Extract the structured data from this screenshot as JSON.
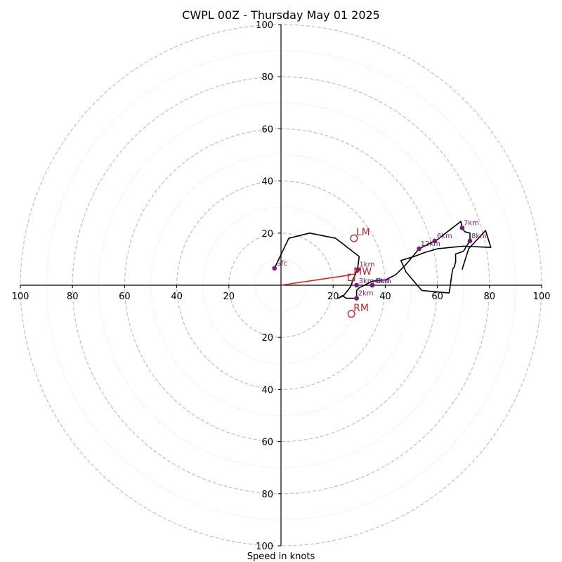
{
  "chart_data": {
    "type": "polar-hodograph",
    "title": "CWPL 00Z - Thursday May 01 2025",
    "xlabel": "Speed in knots",
    "rings_major": [
      20,
      40,
      60,
      80,
      100
    ],
    "rings_minor": [
      10,
      30,
      50,
      70,
      90
    ],
    "max_speed": 100,
    "ticks": {
      "x_negative": [
        "100",
        "80",
        "60",
        "40",
        "20"
      ],
      "x_positive": [
        "20",
        "40",
        "60",
        "80",
        "100"
      ],
      "y_upper": [
        "100",
        "80",
        "60",
        "40",
        "20"
      ],
      "y_lower": [
        "20",
        "40",
        "60",
        "80",
        "100"
      ]
    },
    "hodograph_trace": [
      [
        -2.5,
        6.5
      ],
      [
        3,
        18
      ],
      [
        11,
        20
      ],
      [
        21,
        18
      ],
      [
        30,
        11
      ],
      [
        29.5,
        7
      ],
      [
        28.5,
        4
      ],
      [
        27.5,
        2
      ],
      [
        27,
        0
      ],
      [
        26,
        -1.5
      ],
      [
        24,
        -4
      ],
      [
        22,
        -5
      ],
      [
        23.5,
        -4
      ],
      [
        25,
        -5
      ],
      [
        29,
        -5
      ],
      [
        29,
        -2
      ],
      [
        30,
        -1
      ],
      [
        32,
        0
      ],
      [
        35,
        1.5
      ],
      [
        38,
        2
      ],
      [
        40,
        2
      ],
      [
        44,
        4
      ],
      [
        48,
        8
      ],
      [
        53,
        14
      ],
      [
        60,
        17.5
      ],
      [
        69,
        24.5
      ],
      [
        69.5,
        22
      ],
      [
        70.5,
        20.5
      ],
      [
        72.5,
        20
      ],
      [
        72.5,
        17
      ],
      [
        71.5,
        15.5
      ],
      [
        70,
        13
      ],
      [
        67,
        12
      ],
      [
        67,
        9
      ],
      [
        66.5,
        7
      ],
      [
        66,
        6.5
      ],
      [
        65.5,
        4
      ],
      [
        65,
        0
      ],
      [
        64.5,
        -3
      ],
      [
        54,
        -2
      ],
      [
        48,
        5
      ],
      [
        46,
        9.5
      ],
      [
        51,
        11
      ],
      [
        55,
        12.5
      ],
      [
        60,
        14
      ],
      [
        70,
        15
      ],
      [
        80.5,
        14.5
      ],
      [
        78.5,
        21
      ],
      [
        72,
        14
      ],
      [
        69.5,
        6
      ]
    ],
    "height_points": [
      {
        "label": "Sfc",
        "u": -2.5,
        "v": 6.5
      },
      {
        "label": "1km",
        "u": 29.5,
        "v": 6
      },
      {
        "label": "2km",
        "u": 29,
        "v": -5
      },
      {
        "label": "3km",
        "u": 29,
        "v": 0
      },
      {
        "label": "4km",
        "u": 35,
        "v": 0
      },
      {
        "label": "5km",
        "u": 35,
        "v": 0
      },
      {
        "label": "6km",
        "u": 59,
        "v": 17
      },
      {
        "label": "7km",
        "u": 69.5,
        "v": 22
      },
      {
        "label": "8km",
        "u": 72.5,
        "v": 17
      },
      {
        "label": "12km",
        "u": 53,
        "v": 14
      }
    ],
    "storm_motion": [
      {
        "label": "LM",
        "u": 28,
        "v": 18,
        "marker": "circle"
      },
      {
        "label": "MW",
        "u": 27,
        "v": 3,
        "marker": "square"
      },
      {
        "label": "RM",
        "u": 27,
        "v": -11,
        "marker": "circle"
      }
    ],
    "shear_vector": {
      "u": 27,
      "v": 4
    }
  },
  "colors": {
    "trace": "#000000",
    "height_points": "#7a1a7a",
    "storm_motion": "#c0272d",
    "shear_vector": "#e8201c",
    "rings": "#bfbfbf"
  }
}
